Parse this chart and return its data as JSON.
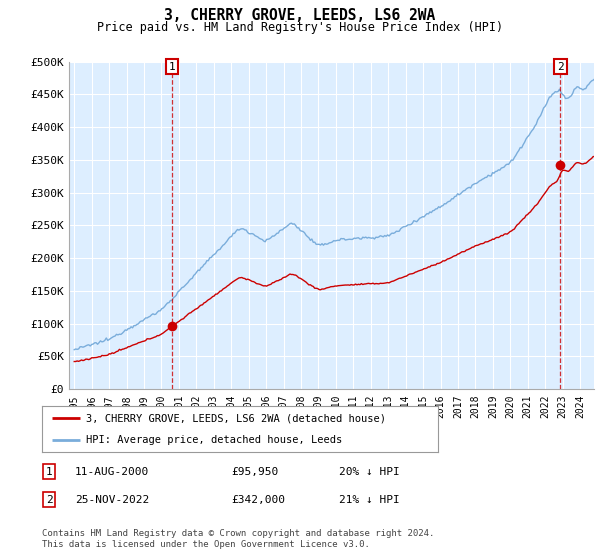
{
  "title": "3, CHERRY GROVE, LEEDS, LS6 2WA",
  "subtitle": "Price paid vs. HM Land Registry's House Price Index (HPI)",
  "ylim": [
    0,
    500000
  ],
  "yticks": [
    0,
    50000,
    100000,
    150000,
    200000,
    250000,
    300000,
    350000,
    400000,
    450000,
    500000
  ],
  "ytick_labels": [
    "£0",
    "£50K",
    "£100K",
    "£150K",
    "£200K",
    "£250K",
    "£300K",
    "£350K",
    "£400K",
    "£450K",
    "£500K"
  ],
  "xlim_start": 1994.7,
  "xlim_end": 2024.8,
  "xtick_years": [
    1995,
    1996,
    1997,
    1998,
    1999,
    2000,
    2001,
    2002,
    2003,
    2004,
    2005,
    2006,
    2007,
    2008,
    2009,
    2010,
    2011,
    2012,
    2013,
    2014,
    2015,
    2016,
    2017,
    2018,
    2019,
    2020,
    2021,
    2022,
    2023,
    2024
  ],
  "hpi_color": "#7aaddb",
  "property_color": "#cc0000",
  "plot_bg": "#ddeeff",
  "grid_color": "#ffffff",
  "sale1_t": 2000.614,
  "sale1_p": 95950,
  "sale2_t": 2022.872,
  "sale2_p": 342000,
  "legend_property": "3, CHERRY GROVE, LEEDS, LS6 2WA (detached house)",
  "legend_hpi": "HPI: Average price, detached house, Leeds",
  "note1_label": "1",
  "note1_date": "11-AUG-2000",
  "note1_price": "£95,950",
  "note1_hpi": "20% ↓ HPI",
  "note2_label": "2",
  "note2_date": "25-NOV-2022",
  "note2_price": "£342,000",
  "note2_hpi": "21% ↓ HPI",
  "footnote": "Contains HM Land Registry data © Crown copyright and database right 2024.\nThis data is licensed under the Open Government Licence v3.0."
}
